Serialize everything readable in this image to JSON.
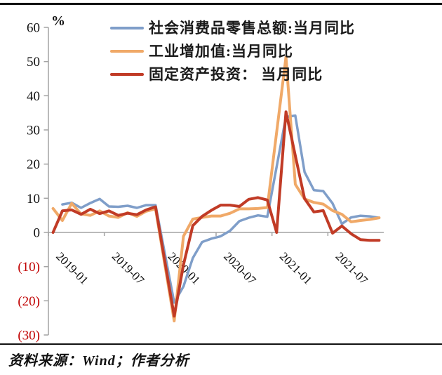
{
  "unit_label": "%",
  "source_note": "资料来源：Wind；作者分析",
  "chart_data": {
    "type": "line",
    "unit": "%",
    "grid": "off",
    "legend_position": "top-center",
    "ylim": [
      -30,
      60
    ],
    "y_ticks": [
      60,
      50,
      40,
      30,
      20,
      10,
      0,
      -10,
      -20,
      -30
    ],
    "negative_tick_color": "#C00000",
    "axis_color": "#A3A3A3",
    "x": [
      "2019-01",
      "2019-02",
      "2019-03",
      "2019-04",
      "2019-05",
      "2019-06",
      "2019-07",
      "2019-08",
      "2019-09",
      "2019-10",
      "2019-11",
      "2019-12",
      "2020-01",
      "2020-02",
      "2020-03",
      "2020-04",
      "2020-05",
      "2020-06",
      "2020-07",
      "2020-08",
      "2020-09",
      "2020-10",
      "2020-11",
      "2020-12",
      "2021-01",
      "2021-02",
      "2021-03",
      "2021-04",
      "2021-05",
      "2021-06",
      "2021-07",
      "2021-08",
      "2021-09",
      "2021-10",
      "2021-11",
      "2021-12"
    ],
    "x_tick_labels": [
      {
        "label": "2019-01",
        "month_index": 0
      },
      {
        "label": "2019-07",
        "month_index": 6
      },
      {
        "label": "2020-01",
        "month_index": 12
      },
      {
        "label": "2020-07",
        "month_index": 18
      },
      {
        "label": "2021-01",
        "month_index": 24
      },
      {
        "label": "2021-07",
        "month_index": 30
      }
    ],
    "series": [
      {
        "key": "retail-sales",
        "name": "社会消费品零售总额:当月同比",
        "color": "#7F9EC9",
        "width": 3.5,
        "values": [
          null,
          8.2,
          8.7,
          7.2,
          8.6,
          9.8,
          7.6,
          7.5,
          7.8,
          7.2,
          8.0,
          8.0,
          null,
          -20.5,
          -15.8,
          -7.5,
          -2.8,
          -1.8,
          -1.1,
          0.5,
          3.3,
          4.3,
          5.0,
          4.6,
          null,
          33.8,
          34.2,
          17.7,
          12.4,
          12.1,
          8.5,
          2.5,
          4.4,
          4.9,
          4.7,
          4.3
        ]
      },
      {
        "key": "industrial-output",
        "name": "工业增加值:当月同比",
        "color": "#F0A968",
        "width": 4,
        "values": [
          7.0,
          3.5,
          8.5,
          5.4,
          5.0,
          6.3,
          4.8,
          4.4,
          5.8,
          4.7,
          6.2,
          6.9,
          null,
          -25.9,
          -1.1,
          3.9,
          4.4,
          4.8,
          4.8,
          5.6,
          6.9,
          6.9,
          7.0,
          7.3,
          null,
          51.3,
          14.1,
          9.8,
          8.8,
          8.3,
          6.4,
          5.3,
          3.1,
          3.5,
          3.8,
          4.3
        ]
      },
      {
        "key": "fixed-asset-investment",
        "name": "固定资产投资： 当月同比",
        "color": "#C13B26",
        "width": 4,
        "values": [
          0,
          6.3,
          6.6,
          5.3,
          6.8,
          5.5,
          6.3,
          5.0,
          5.6,
          5.2,
          6.6,
          7.5,
          null,
          -24.5,
          -9.5,
          2.0,
          4.7,
          6.5,
          8.0,
          8.0,
          7.6,
          9.7,
          10.2,
          9.5,
          0,
          35.3,
          22.5,
          9.9,
          6.0,
          6.4,
          -0.2,
          1.9,
          -0.4,
          -2.1,
          -2.3,
          -2.3
        ]
      }
    ]
  }
}
